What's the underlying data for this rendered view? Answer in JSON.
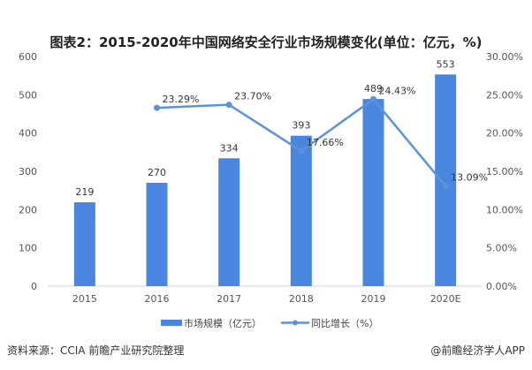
{
  "chart_data": {
    "type": "bar+line",
    "title": "图表2：2015-2020年中国网络安全行业市场规模变化(单位：亿元，%)",
    "categories": [
      "2015",
      "2016",
      "2017",
      "2018",
      "2019",
      "2020E"
    ],
    "series": [
      {
        "name": "市场规模（亿元）",
        "type": "bar",
        "axis": "left",
        "values": [
          219,
          270,
          334,
          393,
          489,
          553
        ],
        "color": "#4a86e0"
      },
      {
        "name": "同比增长（%）",
        "type": "line",
        "axis": "right",
        "values": [
          null,
          23.29,
          23.7,
          17.66,
          24.43,
          13.09
        ],
        "labels": [
          "",
          "23.29%",
          "23.70%",
          "17.66%",
          "24.43%",
          "13.09%"
        ],
        "color": "#5b93d9"
      }
    ],
    "yleft": {
      "range": [
        0,
        600
      ],
      "ticks": [
        "0",
        "100",
        "200",
        "300",
        "400",
        "500",
        "600"
      ]
    },
    "yright": {
      "range": [
        0,
        30
      ],
      "ticks": [
        "0.00%",
        "5.00%",
        "10.00%",
        "15.00%",
        "20.00%",
        "25.00%",
        "30.00%"
      ]
    },
    "grid": false,
    "legend": "bottom"
  },
  "footer": {
    "source": "资料来源：CCIA 前瞻产业研究院整理",
    "brand": "@前瞻经济学人APP"
  }
}
